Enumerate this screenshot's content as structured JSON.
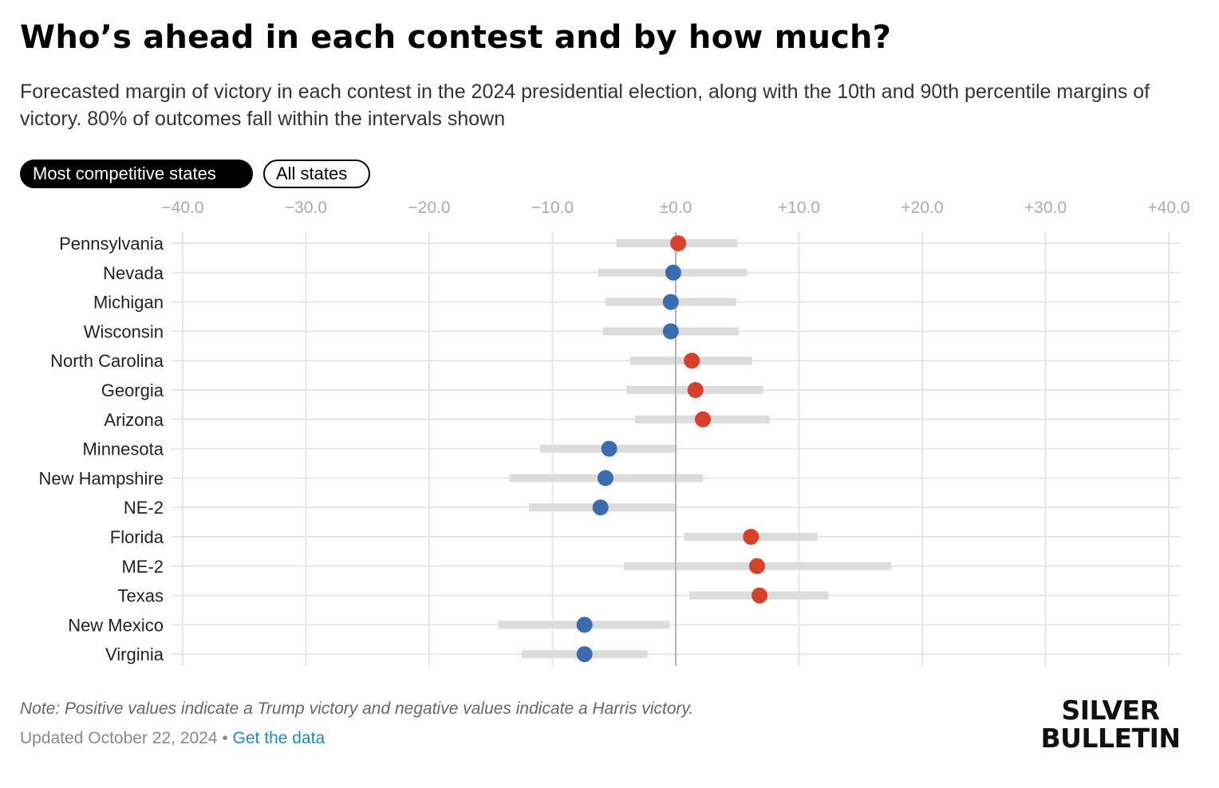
{
  "title": "Who’s ahead in each contest and by how much?",
  "subtitle": "Forecasted margin of victory in each contest in the 2024 presidential election, along with the 10th and 90th percentile margins of victory. 80% of outcomes fall within the intervals shown",
  "toggles": [
    {
      "label": "Most competitive states",
      "active": true
    },
    {
      "label": "All states",
      "active": false
    }
  ],
  "colors": {
    "trump": "#d9402b",
    "harris": "#3b6cb0",
    "interval": "#dcdcdc",
    "grid": "#e6e6e6",
    "zero_line": "#aaaaaa",
    "tick_text": "#aaaaaa"
  },
  "chart_data": {
    "type": "dot-interval",
    "xlim": [
      -40,
      40
    ],
    "xticks": [
      -40,
      -30,
      -20,
      -10,
      0,
      10,
      20,
      30,
      40
    ],
    "xtick_labels": [
      "−40.0",
      "−30.0",
      "−20.0",
      "−10.0",
      "±0.0",
      "+10.0",
      "+20.0",
      "+30.0",
      "+40.0"
    ],
    "grid": true,
    "rows": [
      {
        "state": "Pennsylvania",
        "margin": 0.2,
        "p10": -4.8,
        "p90": 5.0
      },
      {
        "state": "Nevada",
        "margin": -0.2,
        "p10": -6.3,
        "p90": 5.8
      },
      {
        "state": "Michigan",
        "margin": -0.4,
        "p10": -5.7,
        "p90": 4.9
      },
      {
        "state": "Wisconsin",
        "margin": -0.4,
        "p10": -5.9,
        "p90": 5.1
      },
      {
        "state": "North Carolina",
        "margin": 1.3,
        "p10": -3.7,
        "p90": 6.2
      },
      {
        "state": "Georgia",
        "margin": 1.6,
        "p10": -4.0,
        "p90": 7.1
      },
      {
        "state": "Arizona",
        "margin": 2.2,
        "p10": -3.3,
        "p90": 7.6
      },
      {
        "state": "Minnesota",
        "margin": -5.4,
        "p10": -11.0,
        "p90": 0.1
      },
      {
        "state": "New Hampshire",
        "margin": -5.7,
        "p10": -13.5,
        "p90": 2.2
      },
      {
        "state": "NE-2",
        "margin": -6.1,
        "p10": -11.9,
        "p90": 0.0
      },
      {
        "state": "Florida",
        "margin": 6.1,
        "p10": 0.7,
        "p90": 11.5
      },
      {
        "state": "ME-2",
        "margin": 6.6,
        "p10": -4.2,
        "p90": 17.5
      },
      {
        "state": "Texas",
        "margin": 6.8,
        "p10": 1.1,
        "p90": 12.4
      },
      {
        "state": "New Mexico",
        "margin": -7.4,
        "p10": -14.4,
        "p90": -0.5
      },
      {
        "state": "Virginia",
        "margin": -7.4,
        "p10": -12.5,
        "p90": -2.3
      }
    ]
  },
  "footer": {
    "note": "Note: Positive values indicate a Trump victory and negative values indicate a Harris victory.",
    "updated": "Updated October 22, 2024",
    "separator": " • ",
    "link": "Get the data"
  },
  "logo": {
    "line1": "SILVER",
    "line2": "BULLETIN"
  }
}
